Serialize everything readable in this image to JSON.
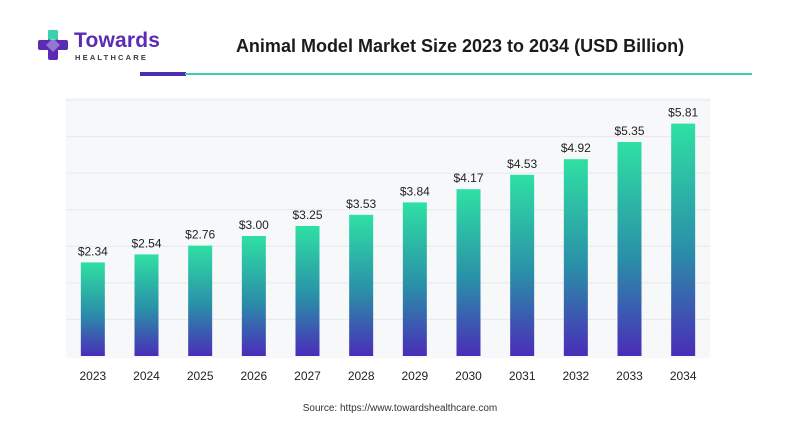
{
  "brand": {
    "name": "Towards",
    "sub": "HEALTHCARE",
    "logo_icon": "purple-teal-cross-icon",
    "colors": {
      "purple": "#5b2bb5",
      "teal": "#3ad1b0"
    }
  },
  "source": "Source: https://www.towardshealthcare.com",
  "chart_data": {
    "type": "bar",
    "title": "Animal Model Market Size 2023 to 2034 (USD Billion)",
    "xlabel": "",
    "ylabel": "",
    "categories": [
      "2023",
      "2024",
      "2025",
      "2026",
      "2027",
      "2028",
      "2029",
      "2030",
      "2031",
      "2032",
      "2033",
      "2034"
    ],
    "values": [
      2.34,
      2.54,
      2.76,
      3.0,
      3.25,
      3.53,
      3.84,
      4.17,
      4.53,
      4.92,
      5.35,
      5.81
    ],
    "labels": [
      "$2.34",
      "$2.54",
      "$2.76",
      "$3.00",
      "$3.25",
      "$3.53",
      "$3.84",
      "$4.17",
      "$4.53",
      "$4.92",
      "$5.35",
      "$5.81"
    ],
    "ylim": [
      0,
      6.4
    ],
    "grid": true,
    "legend": "none",
    "bar_gradient": {
      "top": "#2fe0a4",
      "middle": "#2a8ea8",
      "bottom": "#4a2db8"
    }
  }
}
